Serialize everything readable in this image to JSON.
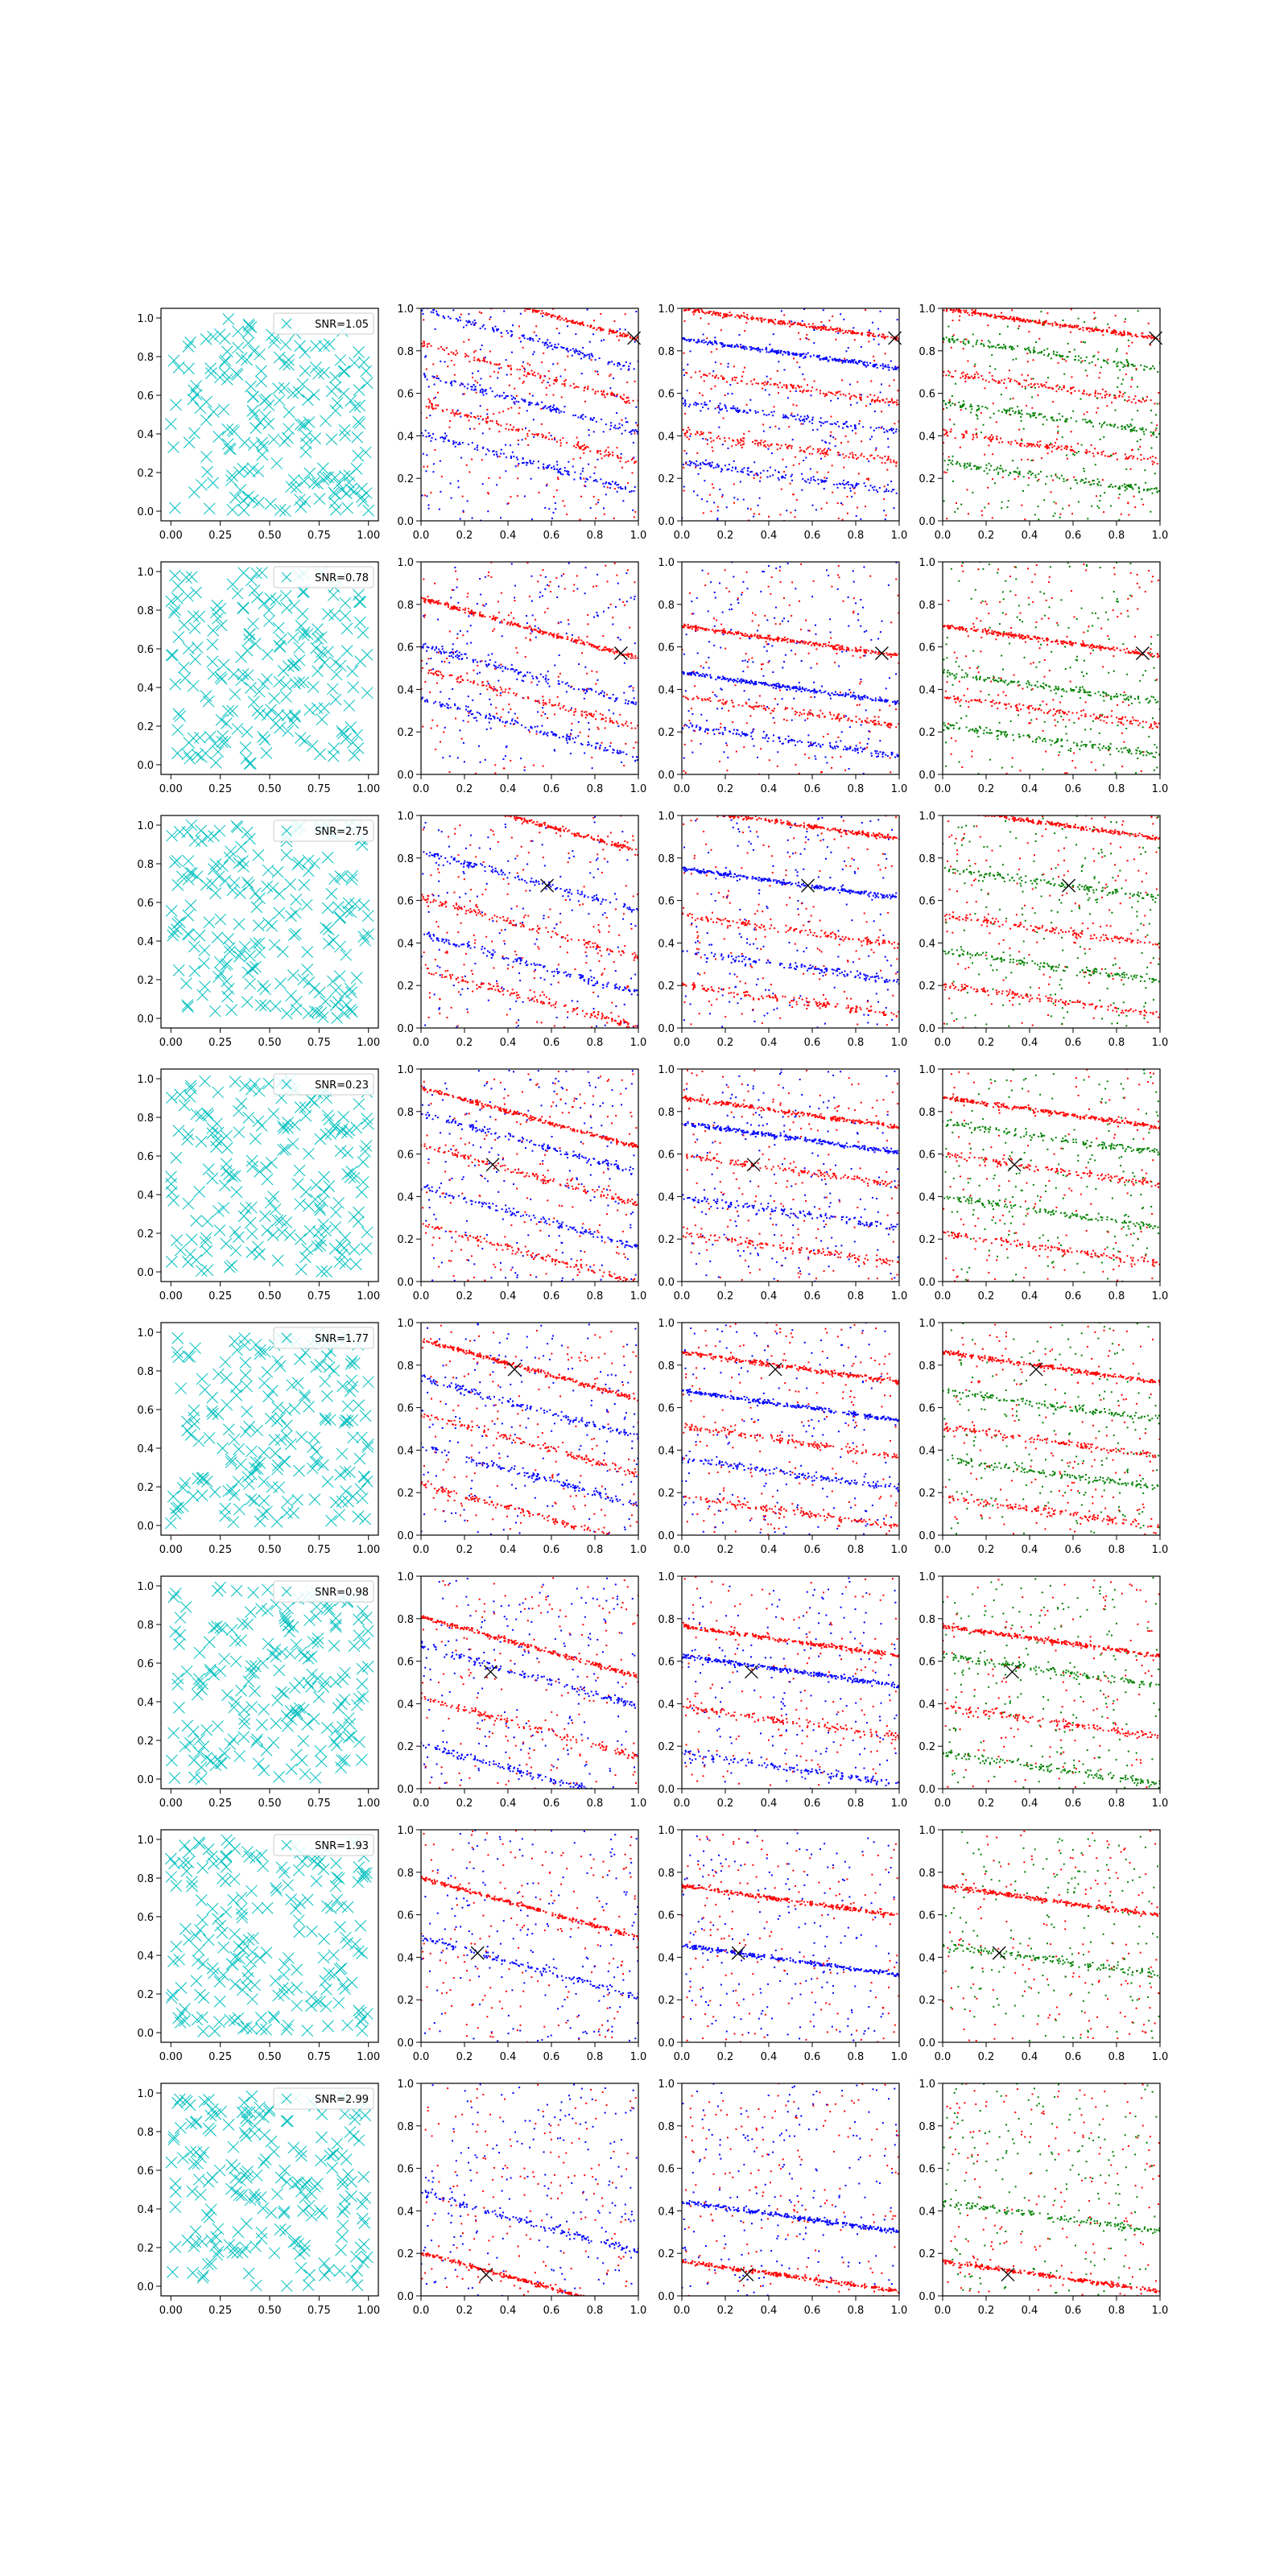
{
  "figure": {
    "background": "#ffffff",
    "colors": {
      "cyan_markers": "#00bfbf",
      "red": "#ff0000",
      "blue": "#0000ff",
      "green": "#008000",
      "black": "#000000"
    }
  },
  "chart_data": {
    "type": "scatter",
    "layout": "8 rows x 4 columns grid of scatter subplots",
    "columns": [
      {
        "kind": "scatter",
        "marker": "x",
        "color": "#00bfbf",
        "series": "random 2D points with SNR legend"
      },
      {
        "kind": "scatter",
        "marker": ".",
        "colors": [
          "#ff0000",
          "#0000ff"
        ],
        "series": "dense diagonal bands"
      },
      {
        "kind": "scatter",
        "marker": ".",
        "colors": [
          "#ff0000",
          "#0000ff"
        ],
        "series": "dense diagonal bands"
      },
      {
        "kind": "scatter",
        "marker": ".",
        "colors": [
          "#ff0000",
          "#008000"
        ],
        "series": "dense diagonal bands"
      }
    ],
    "col0_xticks": [
      "0.00",
      "0.25",
      "0.50",
      "0.75",
      "1.00"
    ],
    "col0_yticks": [
      "0.0",
      "0.2",
      "0.4",
      "0.6",
      "0.8",
      "1.0"
    ],
    "other_xticks": [
      "0.0",
      "0.2",
      "0.4",
      "0.6",
      "0.8",
      "1.0"
    ],
    "other_yticks": [
      "0.0",
      "0.2",
      "0.4",
      "0.6",
      "0.8",
      "1.0"
    ],
    "xlim": [
      0,
      1
    ],
    "ylim": [
      0,
      1
    ],
    "grid": false,
    "rows": [
      {
        "snr_label": "SNR=1.05",
        "cross": [
          0.98,
          0.86
        ],
        "bands": [
          0.86,
          0.72,
          0.56,
          0.42,
          0.28,
          0.14
        ]
      },
      {
        "snr_label": "SNR=0.78",
        "cross": [
          0.92,
          0.57
        ],
        "bands": [
          0.57,
          0.35,
          0.24,
          0.1
        ]
      },
      {
        "snr_label": "SNR=2.75",
        "cross": [
          0.58,
          0.67
        ],
        "bands": [
          0.95,
          0.67,
          0.45,
          0.28,
          0.12
        ]
      },
      {
        "snr_label": "SNR=0.23",
        "cross": [
          0.33,
          0.55
        ],
        "bands": [
          0.82,
          0.7,
          0.55,
          0.35,
          0.18
        ]
      },
      {
        "snr_label": "SNR=1.77",
        "cross": [
          0.43,
          0.78
        ],
        "bands": [
          0.8,
          0.62,
          0.45,
          0.3,
          0.12
        ]
      },
      {
        "snr_label": "SNR=0.98",
        "cross": [
          0.32,
          0.55
        ],
        "bands": [
          0.72,
          0.58,
          0.34,
          0.12
        ]
      },
      {
        "snr_label": "SNR=1.93",
        "cross": [
          0.26,
          0.42
        ],
        "bands": [
          0.7,
          0.42
        ]
      },
      {
        "snr_label": "SNR=2.99",
        "cross": [
          0.3,
          0.1
        ],
        "bands": [
          0.12,
          0.4
        ]
      }
    ]
  }
}
